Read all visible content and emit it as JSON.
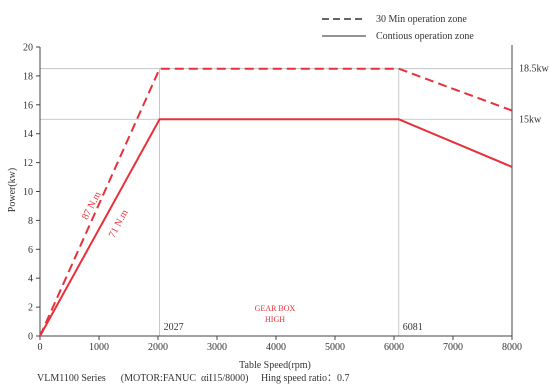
{
  "chart_data": {
    "type": "line",
    "xlabel": "Table Speed(rpm)",
    "ylabel": "Power(kw)",
    "xlim": [
      0,
      8000
    ],
    "ylim": [
      0,
      20
    ],
    "x_ticks": [
      "0",
      "1000",
      "2000",
      "3000",
      "4000",
      "5000",
      "6000",
      "7000",
      "8000"
    ],
    "y_ticks": [
      "0",
      "2",
      "4",
      "6",
      "8",
      "10",
      "12",
      "14",
      "16",
      "18",
      "20"
    ],
    "grid": false,
    "legend_position": "top-right",
    "series": [
      {
        "name": "30 Min operation zone",
        "style": "dashed",
        "color": "#e8303a",
        "x": [
          0,
          2027,
          6081,
          8000
        ],
        "y": [
          0,
          18.5,
          18.5,
          15.6
        ],
        "label": "87 N.m"
      },
      {
        "name": "Contious operation zone",
        "style": "solid",
        "color": "#e8303a",
        "x": [
          0,
          2027,
          6081,
          8000
        ],
        "y": [
          0,
          15,
          15,
          11.7
        ],
        "label": "71 N.m"
      }
    ],
    "reference_lines": {
      "horizontal": [
        {
          "y": 18.5,
          "label": "18.5kw"
        },
        {
          "y": 15,
          "label": "15kw"
        }
      ],
      "vertical": [
        {
          "x": 2027,
          "label": "2027"
        },
        {
          "x": 6081,
          "label": "6081"
        }
      ]
    },
    "annotations": [
      "GEAR BOX",
      "HIGH"
    ],
    "footer": "VLM1100 Series      (MOTOR:FANUC  αiI15/8000)     Hing speed ratio：0.7"
  },
  "legend_line_color": "#555555",
  "ref_line_color": "#bbbbbb"
}
